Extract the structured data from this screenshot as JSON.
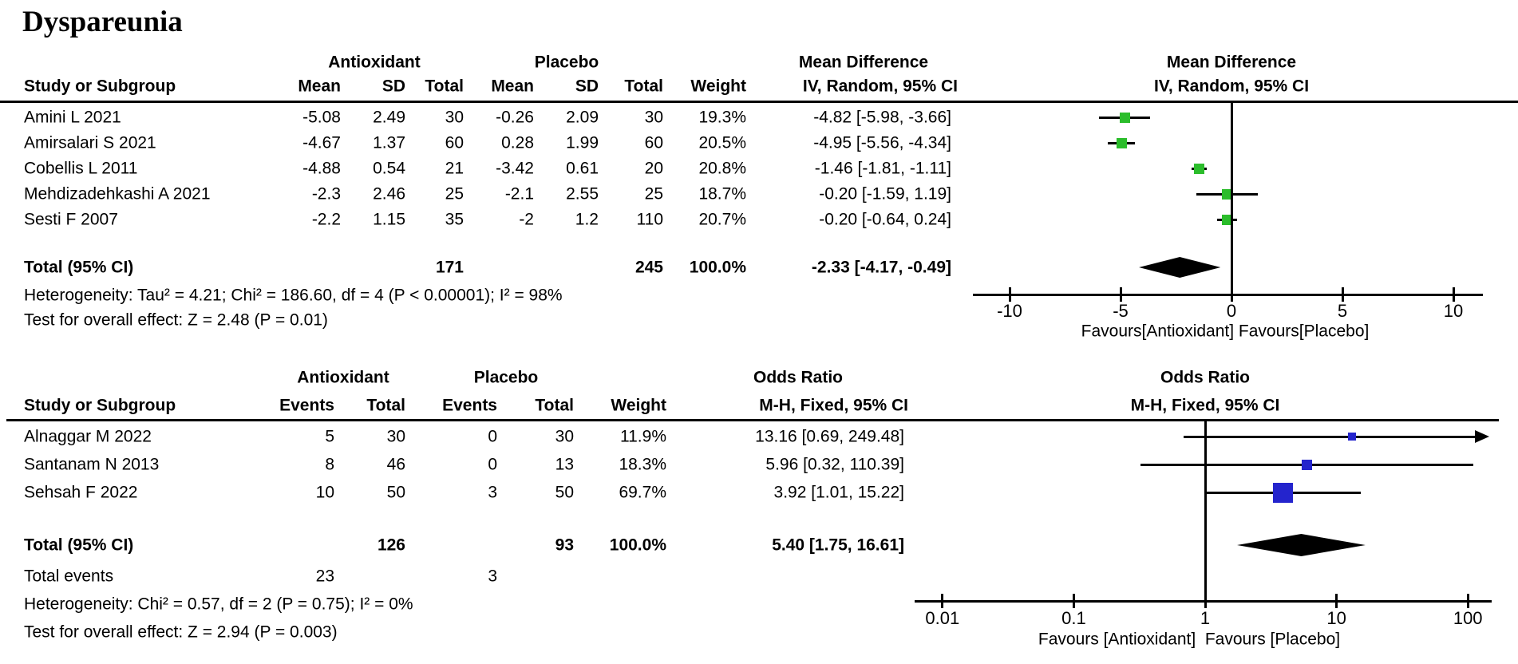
{
  "title": "Dyspareunia",
  "colors": {
    "md_square": "#2bbd2b",
    "or_square": "#2424cd",
    "diamond": "#000000",
    "line": "#000000"
  },
  "chart_data": [
    {
      "type": "forest",
      "measure": "Mean Difference",
      "method": "IV, Random, 95% CI",
      "group1": "Antioxidant",
      "group2": "Placebo",
      "study_header": "Study or Subgroup",
      "col_labels": [
        "Mean",
        "SD",
        "Total",
        "Mean",
        "SD",
        "Total",
        "Weight"
      ],
      "marker_color": "#2bbd2b",
      "rows": [
        {
          "study": "Amini L 2021",
          "cells": [
            "-5.08",
            "2.49",
            "30",
            "-0.26",
            "2.09",
            "30",
            "19.3%"
          ],
          "effect": "-4.82 [-5.98, -3.66]",
          "est": -4.82,
          "lo": -5.98,
          "hi": -3.66,
          "weight_pct": 19.3
        },
        {
          "study": "Amirsalari S 2021",
          "cells": [
            "-4.67",
            "1.37",
            "60",
            "0.28",
            "1.99",
            "60",
            "20.5%"
          ],
          "effect": "-4.95 [-5.56, -4.34]",
          "est": -4.95,
          "lo": -5.56,
          "hi": -4.34,
          "weight_pct": 20.5
        },
        {
          "study": "Cobellis L 2011",
          "cells": [
            "-4.88",
            "0.54",
            "21",
            "-3.42",
            "0.61",
            "20",
            "20.8%"
          ],
          "effect": "-1.46 [-1.81, -1.11]",
          "est": -1.46,
          "lo": -1.81,
          "hi": -1.11,
          "weight_pct": 20.8
        },
        {
          "study": "Mehdizadehkashi A 2021",
          "cells": [
            "-2.3",
            "2.46",
            "25",
            "-2.1",
            "2.55",
            "25",
            "18.7%"
          ],
          "effect": "-0.20 [-1.59, 1.19]",
          "est": -0.2,
          "lo": -1.59,
          "hi": 1.19,
          "weight_pct": 18.7
        },
        {
          "study": "Sesti F 2007",
          "cells": [
            "-2.2",
            "1.15",
            "35",
            "-2",
            "1.2",
            "110",
            "20.7%"
          ],
          "effect": "-0.20 [-0.64, 0.24]",
          "est": -0.2,
          "lo": -0.64,
          "hi": 0.24,
          "weight_pct": 20.7
        }
      ],
      "total": {
        "label": "Total (95% CI)",
        "cells": [
          "",
          "",
          "171",
          "",
          "",
          "245",
          "100.0%"
        ],
        "effect": "-2.33 [-4.17, -0.49]",
        "est": -2.33,
        "lo": -4.17,
        "hi": -0.49
      },
      "heterogeneity": "Heterogeneity: Tau² = 4.21; Chi² = 186.60, df = 4 (P < 0.00001); I² = 98%",
      "overall_effect": "Test for overall effect: Z = 2.48 (P = 0.01)",
      "axis": {
        "scale": "linear",
        "min": -10,
        "max": 10,
        "tick_values": [
          -10,
          -5,
          0,
          5,
          10
        ],
        "tick_labels": [
          "-10",
          "-5",
          "0",
          "5",
          "10"
        ]
      },
      "favours": "Favours[Antioxidant] Favours[Placebo]"
    },
    {
      "type": "forest",
      "measure": "Odds Ratio",
      "method": "M-H, Fixed, 95% CI",
      "group1": "Antioxidant",
      "group2": "Placebo",
      "study_header": "Study or Subgroup",
      "col_labels": [
        "Events",
        "Total",
        "Events",
        "Total",
        "Weight"
      ],
      "marker_color": "#2424cd",
      "rows": [
        {
          "study": "Alnaggar M 2022",
          "cells": [
            "5",
            "30",
            "0",
            "30",
            "11.9%"
          ],
          "effect": "13.16 [0.69, 249.48]",
          "est": 13.16,
          "lo": 0.69,
          "hi": 249.48,
          "weight_pct": 11.9
        },
        {
          "study": "Santanam N 2013",
          "cells": [
            "8",
            "46",
            "0",
            "13",
            "18.3%"
          ],
          "effect": "5.96 [0.32, 110.39]",
          "est": 5.96,
          "lo": 0.32,
          "hi": 110.39,
          "weight_pct": 18.3
        },
        {
          "study": "Sehsah F 2022",
          "cells": [
            "10",
            "50",
            "3",
            "50",
            "69.7%"
          ],
          "effect": "3.92 [1.01, 15.22]",
          "est": 3.92,
          "lo": 1.01,
          "hi": 15.22,
          "weight_pct": 69.7
        }
      ],
      "total": {
        "label": "Total (95% CI)",
        "cells": [
          "",
          "126",
          "",
          "93",
          "100.0%"
        ],
        "effect": "5.40 [1.75, 16.61]",
        "est": 5.4,
        "lo": 1.75,
        "hi": 16.61
      },
      "total_events": {
        "label": "Total events",
        "cells": [
          "23",
          "",
          "3",
          "",
          ""
        ]
      },
      "heterogeneity": "Heterogeneity: Chi² = 0.57, df = 2 (P = 0.75); I² = 0%",
      "overall_effect": "Test for overall effect: Z = 2.94 (P = 0.003)",
      "axis": {
        "scale": "log",
        "min": 0.01,
        "max": 100,
        "tick_values": [
          0.01,
          0.1,
          1,
          10,
          100
        ],
        "tick_labels": [
          "0.01",
          "0.1",
          "1",
          "10",
          "100"
        ]
      },
      "favours": "Favours [Antioxidant]  Favours [Placebo]"
    }
  ]
}
